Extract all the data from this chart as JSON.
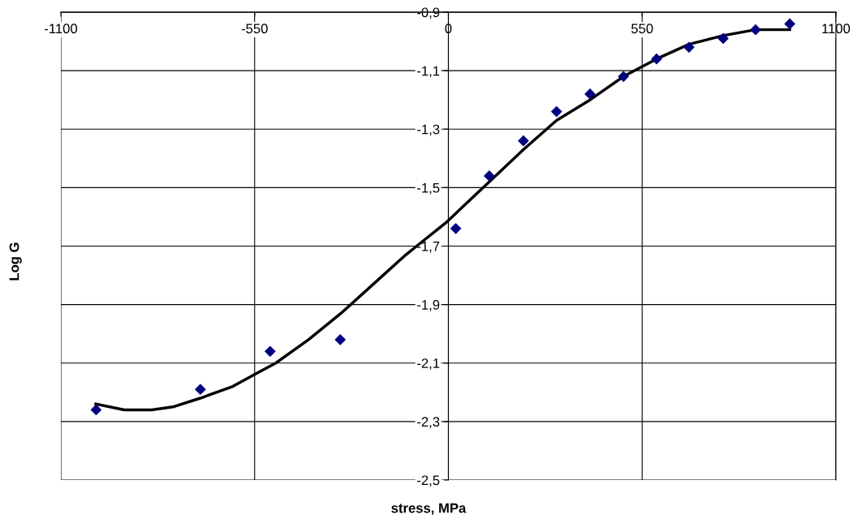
{
  "chart_data": {
    "type": "scatter",
    "xlabel": "stress, MPa",
    "ylabel": "Log G",
    "xlim": [
      -1100,
      1100
    ],
    "ylim": [
      -2.5,
      -0.9
    ],
    "xticks": [
      -1100,
      -550,
      0,
      550,
      1100
    ],
    "yticks": [
      {
        "value": -2.5,
        "label": "-2,5"
      },
      {
        "value": -2.3,
        "label": "-2,3"
      },
      {
        "value": -2.1,
        "label": "-2,1"
      },
      {
        "value": -1.9,
        "label": "-1,9"
      },
      {
        "value": -1.7,
        "label": "-1,7"
      },
      {
        "value": -1.5,
        "label": "-1,5"
      },
      {
        "value": -1.3,
        "label": "-1,3"
      },
      {
        "value": -1.1,
        "label": "-1,1"
      },
      {
        "value": -0.9,
        "label": "-0,9"
      }
    ],
    "grid": true,
    "legend": false,
    "series": [
      {
        "color": "#000080",
        "marker": "diamond",
        "x": [
          -1000,
          -704,
          -506,
          -307,
          21,
          116,
          213,
          307,
          402,
          497,
          591,
          683,
          780,
          872,
          969
        ],
        "values": [
          -2.26,
          -2.19,
          -2.06,
          -2.02,
          -1.64,
          -1.46,
          -1.34,
          -1.24,
          -1.18,
          -1.12,
          -1.06,
          -1.02,
          -0.99,
          -0.96,
          -0.94
        ]
      },
      {
        "type": "line",
        "color": "#000000",
        "marker": "none",
        "line_style": "solid",
        "x": [
          -1001,
          -920,
          -842,
          -782,
          -704,
          -612,
          -552,
          -490,
          -397,
          -305,
          -213,
          -121,
          -7,
          116,
          213,
          307,
          402,
          497,
          591,
          683,
          780,
          872,
          969
        ],
        "values": [
          -2.24,
          -2.26,
          -2.26,
          -2.25,
          -2.22,
          -2.18,
          -2.14,
          -2.1,
          -2.02,
          -1.93,
          -1.83,
          -1.73,
          -1.62,
          -1.48,
          -1.37,
          -1.27,
          -1.2,
          -1.12,
          -1.06,
          -1.01,
          -0.98,
          -0.96,
          -0.96
        ]
      }
    ]
  }
}
